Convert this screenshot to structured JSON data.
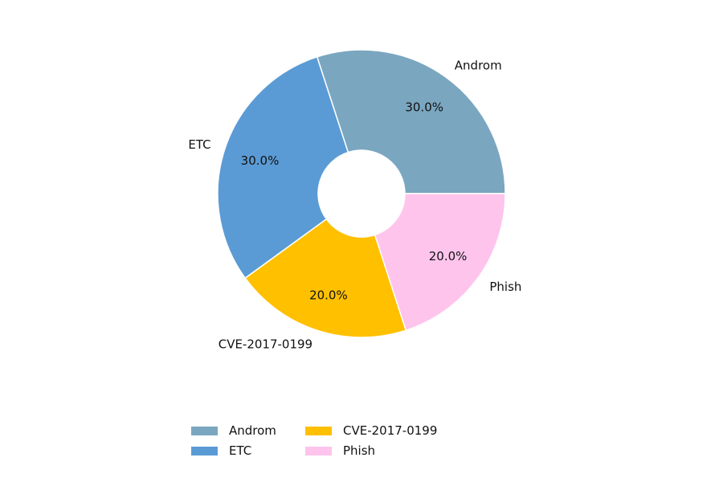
{
  "chart_data": {
    "type": "pie",
    "donut": true,
    "categories": [
      "Androm",
      "ETC",
      "CVE-2017-0199",
      "Phish"
    ],
    "values": [
      30,
      30,
      20,
      20
    ],
    "percent_labels": [
      "30.0%",
      "30.0%",
      "20.0%",
      "20.0%"
    ],
    "colors": [
      "#7AA6C0",
      "#5B9BD5",
      "#FFC000",
      "#FEC4EC"
    ],
    "start_angle_deg": 0,
    "direction": "counterclockwise",
    "legend": {
      "position": "bottom",
      "entries": [
        "Androm",
        "ETC",
        "CVE-2017-0199",
        "Phish"
      ]
    }
  }
}
